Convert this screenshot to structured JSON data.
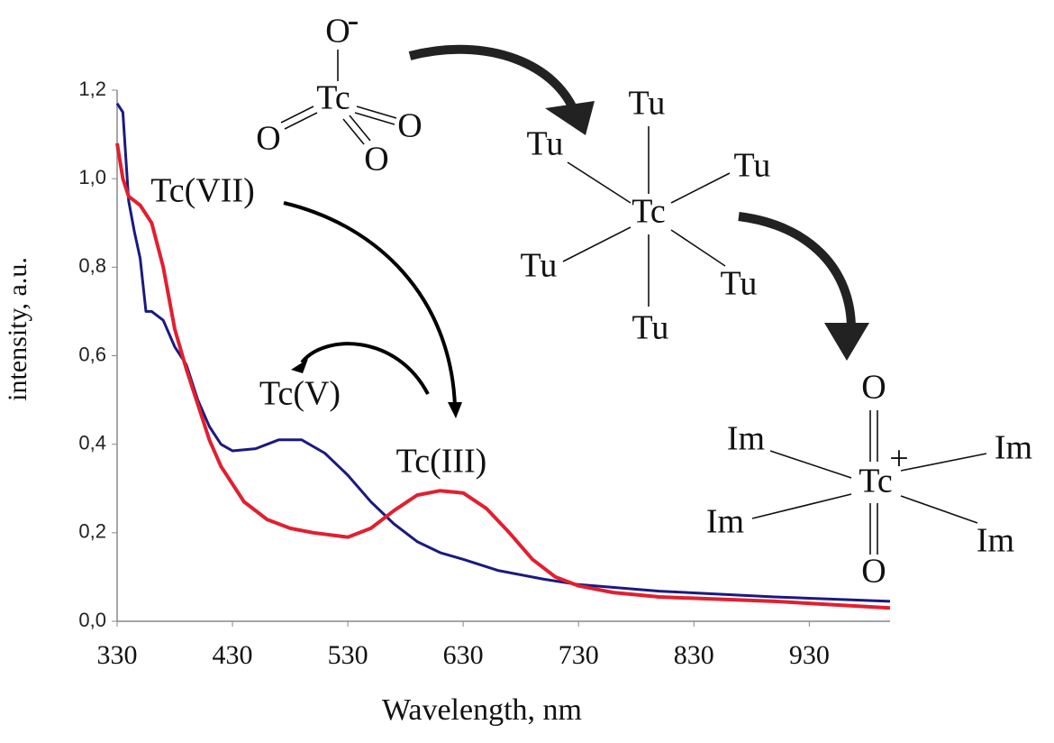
{
  "chart_data": {
    "type": "line",
    "xlabel": "Wavelength, nm",
    "ylabel": "intensity, a.u.",
    "xlim": [
      330,
      1000
    ],
    "ylim": [
      0,
      1.2
    ],
    "xticks": [
      330,
      430,
      530,
      630,
      730,
      830,
      930
    ],
    "yticks": [
      {
        "value": 0,
        "label": "0,0"
      },
      {
        "value": 0.2,
        "label": "0,2"
      },
      {
        "value": 0.4,
        "label": "0,4"
      },
      {
        "value": 0.6,
        "label": "0,6"
      },
      {
        "value": 0.8,
        "label": "0,8"
      },
      {
        "value": 1.0,
        "label": "1,0"
      },
      {
        "value": 1.2,
        "label": "1,2"
      }
    ],
    "series": [
      {
        "color": "#1a1a80",
        "x": [
          330,
          335,
          340,
          345,
          350,
          355,
          360,
          365,
          370,
          380,
          390,
          400,
          410,
          420,
          430,
          450,
          470,
          490,
          510,
          530,
          550,
          570,
          590,
          610,
          630,
          660,
          700,
          730,
          800,
          900,
          1000
        ],
        "values": [
          1.17,
          1.15,
          0.95,
          0.88,
          0.82,
          0.7,
          0.7,
          0.69,
          0.68,
          0.62,
          0.58,
          0.5,
          0.44,
          0.4,
          0.385,
          0.39,
          0.41,
          0.41,
          0.38,
          0.33,
          0.27,
          0.22,
          0.18,
          0.155,
          0.14,
          0.115,
          0.095,
          0.083,
          0.068,
          0.055,
          0.045
        ]
      },
      {
        "color": "#e02030",
        "x": [
          330,
          335,
          340,
          350,
          360,
          370,
          380,
          390,
          400,
          410,
          420,
          440,
          460,
          480,
          500,
          530,
          550,
          570,
          590,
          610,
          630,
          650,
          670,
          690,
          710,
          730,
          760,
          800,
          900,
          1000
        ],
        "values": [
          1.08,
          1.0,
          0.96,
          0.94,
          0.9,
          0.8,
          0.66,
          0.57,
          0.49,
          0.41,
          0.35,
          0.27,
          0.23,
          0.21,
          0.2,
          0.19,
          0.21,
          0.25,
          0.285,
          0.295,
          0.29,
          0.255,
          0.2,
          0.14,
          0.1,
          0.08,
          0.065,
          0.055,
          0.045,
          0.03
        ]
      }
    ],
    "annotations": [
      {
        "text": "Tc(VII)",
        "color": "#111111"
      },
      {
        "text": "Tc(V)",
        "color": "#2ea83a"
      },
      {
        "text": "Tc(III)",
        "color": "#e02030"
      }
    ]
  },
  "structures": [
    {
      "center": "Tc",
      "charge": "-",
      "ligands": [
        "O",
        "O",
        "O",
        "O"
      ]
    },
    {
      "center": "Tc",
      "ligands": [
        "Tu",
        "Tu",
        "Tu",
        "Tu",
        "Tu",
        "Tu"
      ]
    },
    {
      "center": "Tc",
      "charge": "+",
      "ligands": [
        "O",
        "O",
        "Im",
        "Im",
        "Im",
        "Im"
      ]
    }
  ]
}
